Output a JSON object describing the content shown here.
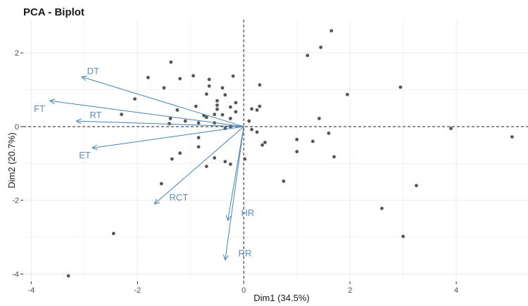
{
  "chart_data": {
    "type": "scatter",
    "title": "PCA - Biplot",
    "xlabel": "Dim1 (34.5%)",
    "ylabel": "Dim2 (20.7%)",
    "xlim": [
      -4.15,
      5.35
    ],
    "ylim": [
      -4.2,
      2.9
    ],
    "x_ticks": [
      -4,
      -2,
      0,
      2,
      4
    ],
    "x_tick_labels": [
      "-4",
      "-2",
      "0",
      "2",
      "4"
    ],
    "y_ticks": [
      -4,
      -2,
      0,
      2
    ],
    "y_tick_labels": [
      "-4",
      "-2",
      "0",
      "2"
    ],
    "grid": true,
    "reference_lines": {
      "x": 0,
      "y": 0,
      "style": "dashed"
    },
    "colors": {
      "points": "#555555",
      "arrows": "#4682b4",
      "labels": "#5b8db8",
      "grid": "#ebebeb"
    },
    "points": [
      {
        "x": 1.65,
        "y": 2.6
      },
      {
        "x": 1.45,
        "y": 2.15
      },
      {
        "x": 1.2,
        "y": 1.93
      },
      {
        "x": -1.37,
        "y": 1.75
      },
      {
        "x": -1.8,
        "y": 1.33
      },
      {
        "x": -0.95,
        "y": 1.38
      },
      {
        "x": -0.2,
        "y": 1.37
      },
      {
        "x": -1.2,
        "y": 1.3
      },
      {
        "x": -0.65,
        "y": 1.28
      },
      {
        "x": -1.5,
        "y": 1.05
      },
      {
        "x": -0.65,
        "y": 1.1
      },
      {
        "x": 0.3,
        "y": 1.13
      },
      {
        "x": -0.4,
        "y": 1.05
      },
      {
        "x": 2.95,
        "y": 1.07
      },
      {
        "x": -0.7,
        "y": 0.88
      },
      {
        "x": -0.35,
        "y": 0.86
      },
      {
        "x": 1.95,
        "y": 0.87
      },
      {
        "x": -2.05,
        "y": 0.75
      },
      {
        "x": -0.5,
        "y": 0.7
      },
      {
        "x": -0.15,
        "y": 0.65
      },
      {
        "x": -0.9,
        "y": 0.55
      },
      {
        "x": -0.5,
        "y": 0.58
      },
      {
        "x": -0.25,
        "y": 0.53
      },
      {
        "x": 0.3,
        "y": 0.55
      },
      {
        "x": -0.5,
        "y": 0.47
      },
      {
        "x": 0.15,
        "y": 0.48
      },
      {
        "x": 0.25,
        "y": 0.45
      },
      {
        "x": -1.25,
        "y": 0.45
      },
      {
        "x": -0.15,
        "y": 0.4
      },
      {
        "x": -2.3,
        "y": 0.33
      },
      {
        "x": -0.55,
        "y": 0.33
      },
      {
        "x": -0.4,
        "y": 0.32
      },
      {
        "x": -0.75,
        "y": 0.3
      },
      {
        "x": -0.7,
        "y": 0.25
      },
      {
        "x": -0.25,
        "y": 0.22
      },
      {
        "x": 1.42,
        "y": 0.22
      },
      {
        "x": -1.38,
        "y": 0.22
      },
      {
        "x": 0.1,
        "y": 0.15
      },
      {
        "x": -1.1,
        "y": 0.15
      },
      {
        "x": -0.85,
        "y": 0.1
      },
      {
        "x": -0.55,
        "y": 0.1
      },
      {
        "x": -1.4,
        "y": 0.08
      },
      {
        "x": -0.25,
        "y": 0.0
      },
      {
        "x": -0.35,
        "y": -0.05
      },
      {
        "x": 0.15,
        "y": -0.08
      },
      {
        "x": 0.25,
        "y": -0.15
      },
      {
        "x": 1.6,
        "y": -0.18
      },
      {
        "x": 3.9,
        "y": -0.05
      },
      {
        "x": 5.05,
        "y": -0.28
      },
      {
        "x": -0.85,
        "y": -0.3
      },
      {
        "x": 1.0,
        "y": -0.35
      },
      {
        "x": 1.3,
        "y": -0.4
      },
      {
        "x": 0.4,
        "y": -0.43
      },
      {
        "x": 0.35,
        "y": -0.5
      },
      {
        "x": -0.85,
        "y": -0.55
      },
      {
        "x": 1.0,
        "y": -0.68
      },
      {
        "x": -1.2,
        "y": -0.72
      },
      {
        "x": 1.7,
        "y": -0.82
      },
      {
        "x": -0.55,
        "y": -0.85
      },
      {
        "x": 0.02,
        "y": -0.88
      },
      {
        "x": -1.35,
        "y": -0.88
      },
      {
        "x": -0.35,
        "y": -0.95
      },
      {
        "x": -0.25,
        "y": -1.02
      },
      {
        "x": -0.7,
        "y": -1.08
      },
      {
        "x": 0.75,
        "y": -1.48
      },
      {
        "x": -1.55,
        "y": -1.55
      },
      {
        "x": 3.25,
        "y": -1.6
      },
      {
        "x": 2.6,
        "y": -2.22
      },
      {
        "x": -2.45,
        "y": -2.9
      },
      {
        "x": 3.0,
        "y": -2.98
      },
      {
        "x": -3.3,
        "y": -4.05
      }
    ],
    "variables": [
      {
        "name": "DT",
        "x": -3.05,
        "y": 1.35,
        "label_x": -2.95,
        "label_y": 1.5
      },
      {
        "name": "FT",
        "x": -3.65,
        "y": 0.7,
        "label_x": -3.95,
        "label_y": 0.48
      },
      {
        "name": "RT",
        "x": -3.15,
        "y": 0.15,
        "label_x": -2.9,
        "label_y": 0.3
      },
      {
        "name": "ET",
        "x": -2.85,
        "y": -0.58,
        "label_x": -3.1,
        "label_y": -0.78
      },
      {
        "name": "RCT",
        "x": -1.68,
        "y": -2.1,
        "label_x": -1.4,
        "label_y": -1.93
      },
      {
        "name": "HR",
        "x": -0.3,
        "y": -2.55,
        "label_x": -0.05,
        "label_y": -2.35
      },
      {
        "name": "RR",
        "x": -0.35,
        "y": -3.62,
        "label_x": -0.1,
        "label_y": -3.45
      }
    ]
  }
}
